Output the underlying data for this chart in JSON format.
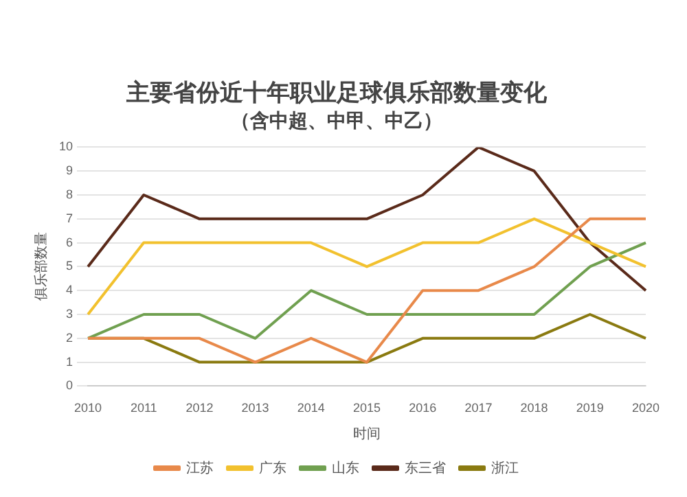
{
  "chart_data": {
    "type": "line",
    "title": "主要省份近十年职业足球俱乐部数量变化",
    "subtitle": "（含中超、中甲、中乙）",
    "xlabel": "时间",
    "ylabel": "俱乐部数量",
    "categories": [
      "2010",
      "2011",
      "2012",
      "2013",
      "2014",
      "2015",
      "2016",
      "2017",
      "2018",
      "2019",
      "2020"
    ],
    "series": [
      {
        "name": "江苏",
        "color": "#e8894a",
        "values": [
          2,
          2,
          2,
          1,
          2,
          1,
          4,
          4,
          5,
          7,
          7
        ]
      },
      {
        "name": "广东",
        "color": "#f2c12e",
        "values": [
          3,
          6,
          6,
          6,
          6,
          5,
          6,
          6,
          7,
          6,
          5
        ]
      },
      {
        "name": "山东",
        "color": "#70a050",
        "values": [
          2,
          3,
          3,
          2,
          4,
          3,
          3,
          3,
          3,
          5,
          6
        ]
      },
      {
        "name": "东三省",
        "color": "#5a2a1a",
        "values": [
          5,
          8,
          7,
          7,
          7,
          7,
          8,
          10,
          9,
          6,
          4
        ]
      },
      {
        "name": "浙江",
        "color": "#8a7a10",
        "values": [
          2,
          2,
          1,
          1,
          1,
          1,
          2,
          2,
          2,
          3,
          2
        ]
      }
    ],
    "ylim": [
      0,
      10
    ],
    "yticks": [
      0,
      1,
      2,
      3,
      4,
      5,
      6,
      7,
      8,
      9,
      10
    ],
    "grid": "y",
    "legend": "bottom",
    "marker": "none",
    "line_style": "solid"
  }
}
